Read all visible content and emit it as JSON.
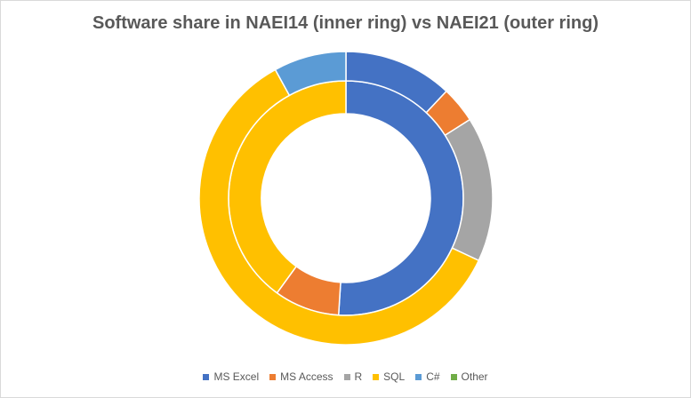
{
  "chart_data": {
    "type": "pie",
    "subtype": "doughnut",
    "title": "Software share in NAEI14 (inner ring) vs NAEI21 (outer ring)",
    "categories": [
      "MS Excel",
      "MS Access",
      "R",
      "SQL",
      "C#",
      "Other"
    ],
    "colors": [
      "#4472c4",
      "#ed7d31",
      "#a5a5a5",
      "#ffc000",
      "#5b9bd5",
      "#70ad47"
    ],
    "series": [
      {
        "ring": "inner",
        "values": [
          51,
          9,
          0,
          40,
          0,
          0
        ]
      },
      {
        "ring": "outer",
        "values": [
          12,
          4,
          16,
          60,
          8,
          0
        ]
      }
    ],
    "legend_position": "bottom"
  }
}
